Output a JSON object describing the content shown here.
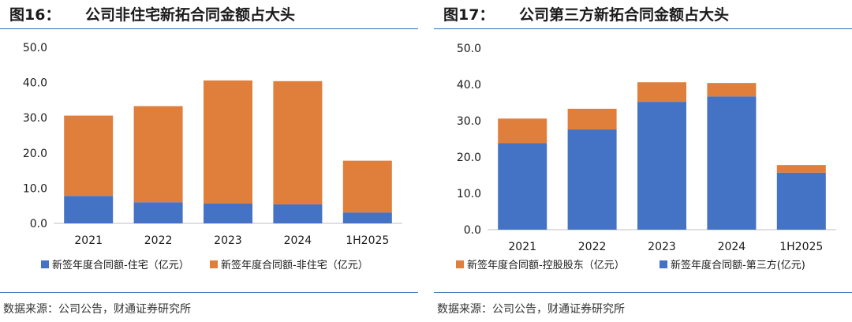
{
  "figures": [
    {
      "number": "图16：",
      "title": "公司非住宅新拓合同金额占大头",
      "source": "数据来源：公司公告，财通证券研究所"
    },
    {
      "number": "图17：",
      "title": "公司第三方新拓合同金额占大头",
      "source": "数据来源：公司公告，财通证券研究所"
    }
  ],
  "chart_data": [
    {
      "type": "bar",
      "stacked": true,
      "categories": [
        "2021",
        "2022",
        "2023",
        "2024",
        "1H2025"
      ],
      "series": [
        {
          "name": "新签年度合同额-住宅（亿元）",
          "values": [
            7.8,
            6.0,
            5.6,
            5.4,
            3.1
          ],
          "color": "#4472c4"
        },
        {
          "name": "新签年度合同额-非住宅（亿元）",
          "values": [
            22.8,
            27.3,
            35.0,
            35.0,
            14.7
          ],
          "color": "#e07e3c"
        }
      ],
      "ylim": [
        0,
        50
      ],
      "yticks": [
        "0.0",
        "10.0",
        "20.0",
        "30.0",
        "40.0",
        "50.0"
      ],
      "legend_position": "bottom",
      "grid": false
    },
    {
      "type": "bar",
      "stacked": true,
      "categories": [
        "2021",
        "2022",
        "2023",
        "2024",
        "1H2025"
      ],
      "series": [
        {
          "name": "新签年度合同额-第三方(亿元)",
          "values": [
            23.8,
            27.6,
            35.2,
            36.7,
            15.7
          ],
          "color": "#4472c4"
        },
        {
          "name": "新签年度合同额-控股股东（亿元）",
          "values": [
            6.8,
            5.7,
            5.4,
            3.7,
            2.1
          ],
          "color": "#e07e3c"
        }
      ],
      "legend_order": [
        1,
        0
      ],
      "ylim": [
        0,
        50
      ],
      "yticks": [
        "0.0",
        "10.0",
        "20.0",
        "30.0",
        "40.0",
        "50.0"
      ],
      "legend_position": "bottom",
      "grid": false
    }
  ]
}
